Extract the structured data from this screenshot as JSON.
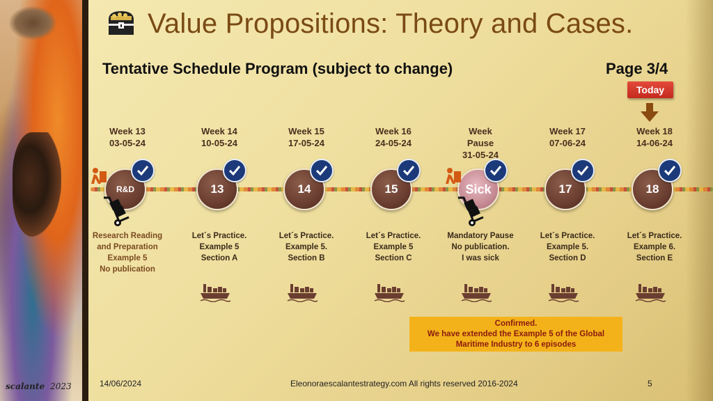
{
  "header": {
    "title": "Value Propositions: Theory and Cases.",
    "subtitle": "Tentative Schedule Program (subject to change)",
    "page": "Page 3/4",
    "icon": "treasure-chest-icon"
  },
  "today_label": "Today",
  "weeks": [
    {
      "week": "Week 13",
      "date": "03-05-24",
      "node": "R&D",
      "desc": [
        "Research Reading",
        "and Preparation",
        "Example 5",
        "No publication"
      ],
      "done": true
    },
    {
      "week": "Week 14",
      "date": "10-05-24",
      "node": "13",
      "desc": [
        "Let´s Practice.",
        "Example 5",
        "Section A"
      ],
      "done": true
    },
    {
      "week": "Week 15",
      "date": "17-05-24",
      "node": "14",
      "desc": [
        "Let´s Practice.",
        "Example 5.",
        "Section B"
      ],
      "done": true
    },
    {
      "week": "Week 16",
      "date": "24-05-24",
      "node": "15",
      "desc": [
        "Let´s Practice.",
        "Example 5",
        "Section C"
      ],
      "done": true
    },
    {
      "week": "Week",
      "week2": "Pause",
      "date": "31-05-24",
      "node": "Sick",
      "desc": [
        "Mandatory Pause",
        "No publication.",
        "I was sick"
      ],
      "done": true
    },
    {
      "week": "Week 17",
      "date": "07-06-24",
      "node": "17",
      "desc": [
        "Let´s Practice.",
        "Example 5.",
        "Section D"
      ],
      "done": true
    },
    {
      "week": "Week 18",
      "date": "14-06-24",
      "node": "18",
      "desc": [
        "Let´s Practice.",
        "Example 6.",
        "Section E"
      ],
      "done": true
    }
  ],
  "confirm": {
    "line1": "Confirmed.",
    "line2": "We have extended the Example 5 of the Global",
    "line3": "Maritime Industry to 6 episodes"
  },
  "footer": {
    "date": "14/06/2024",
    "site": "Eleonoraescalantestrategy.com  All rights reserved 2016-2024",
    "slide": "5"
  },
  "signature": {
    "name": "scalante",
    "year": "2023"
  },
  "colors": {
    "title": "#7a4a14",
    "node": "#6a3e30",
    "check": "#1c3a7a",
    "today": "#d2352a",
    "confirm_bg": "#f4b21a",
    "confirm_text": "#8a1a10"
  }
}
